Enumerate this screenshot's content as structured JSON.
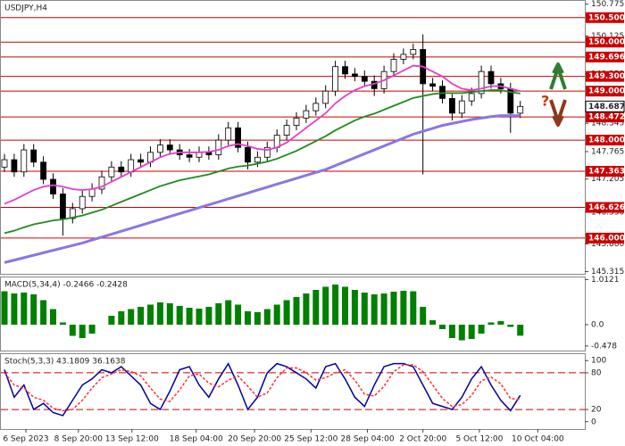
{
  "chart_data": [
    {
      "type": "candlestick",
      "title": "USDJPY,H4",
      "open": [
        147.45,
        147.6,
        147.35,
        147.8,
        147.55,
        147.2,
        146.9,
        146.4,
        146.6,
        146.85,
        147.0,
        147.25,
        147.45,
        147.35,
        147.6,
        147.55,
        147.75,
        147.9,
        147.8,
        147.7,
        147.65,
        147.75,
        147.7,
        148.0,
        148.25,
        147.85,
        147.55,
        147.65,
        147.85,
        148.1,
        148.3,
        148.45,
        148.6,
        148.75,
        149.0,
        149.5,
        149.35,
        149.3,
        149.2,
        149.05,
        149.4,
        149.65,
        149.75,
        149.85,
        149.15,
        149.1,
        148.85,
        148.55,
        148.8,
        148.95,
        149.4,
        149.15,
        149.05,
        148.55
      ],
      "high": [
        147.72,
        147.72,
        147.92,
        147.92,
        147.67,
        147.32,
        147.02,
        146.72,
        146.97,
        147.12,
        147.37,
        147.57,
        147.57,
        147.72,
        147.72,
        147.87,
        148.02,
        148.02,
        147.92,
        147.82,
        147.87,
        147.87,
        148.12,
        148.37,
        148.37,
        147.97,
        147.77,
        147.97,
        148.22,
        148.42,
        148.57,
        148.72,
        148.87,
        149.12,
        149.62,
        149.62,
        149.47,
        149.42,
        149.32,
        149.52,
        149.77,
        149.87,
        149.97,
        150.16,
        149.27,
        149.22,
        148.97,
        148.92,
        149.07,
        149.52,
        149.52,
        149.27,
        149.17,
        148.8
      ],
      "low": [
        147.35,
        147.25,
        147.25,
        147.45,
        147.1,
        146.8,
        146.05,
        146.3,
        146.5,
        146.75,
        146.9,
        147.15,
        147.25,
        147.25,
        147.45,
        147.45,
        147.65,
        147.7,
        147.6,
        147.55,
        147.55,
        147.6,
        147.6,
        147.9,
        147.75,
        147.4,
        147.45,
        147.55,
        147.75,
        148.0,
        148.2,
        148.35,
        148.5,
        148.65,
        148.9,
        149.25,
        149.2,
        149.1,
        148.9,
        148.95,
        149.3,
        149.55,
        149.65,
        147.3,
        149.0,
        148.75,
        148.4,
        148.45,
        148.7,
        148.85,
        149.05,
        148.95,
        148.15,
        148.45
      ],
      "close": [
        147.6,
        147.35,
        147.8,
        147.55,
        147.2,
        146.9,
        146.4,
        146.6,
        146.85,
        147.0,
        147.25,
        147.45,
        147.35,
        147.6,
        147.55,
        147.75,
        147.9,
        147.8,
        147.7,
        147.65,
        147.75,
        147.7,
        148.0,
        148.25,
        147.85,
        147.55,
        147.65,
        147.85,
        148.1,
        148.3,
        148.45,
        148.6,
        148.75,
        149.0,
        149.5,
        149.35,
        149.3,
        149.2,
        149.05,
        149.4,
        149.65,
        149.75,
        149.85,
        149.15,
        149.1,
        148.85,
        148.55,
        148.8,
        148.95,
        149.4,
        149.15,
        149.05,
        148.55,
        148.687
      ],
      "series": [
        {
          "color": "#8878e0",
          "values": [
            145.5,
            145.55,
            145.6,
            145.65,
            145.7,
            145.75,
            145.8,
            145.85,
            145.9,
            145.96,
            146.02,
            146.08,
            146.14,
            146.2,
            146.26,
            146.32,
            146.38,
            146.44,
            146.5,
            146.56,
            146.62,
            146.68,
            146.74,
            146.8,
            146.86,
            146.92,
            146.98,
            147.04,
            147.1,
            147.16,
            147.22,
            147.28,
            147.34,
            147.4,
            147.48,
            147.56,
            147.64,
            147.72,
            147.8,
            147.88,
            147.96,
            148.04,
            148.12,
            148.18,
            148.24,
            148.3,
            148.34,
            148.38,
            148.42,
            148.45,
            148.48,
            148.5,
            148.5,
            148.5
          ]
        },
        {
          "color": "#1e8c1e",
          "values": [
            146.1,
            146.15,
            146.22,
            146.28,
            146.32,
            146.36,
            146.38,
            146.42,
            146.46,
            146.52,
            146.58,
            146.66,
            146.74,
            146.82,
            146.9,
            146.98,
            147.06,
            147.12,
            147.18,
            147.22,
            147.26,
            147.3,
            147.36,
            147.42,
            147.46,
            147.48,
            147.52,
            147.56,
            147.62,
            147.7,
            147.78,
            147.88,
            147.98,
            148.08,
            148.2,
            148.3,
            148.4,
            148.48,
            148.54,
            148.62,
            148.7,
            148.78,
            148.86,
            148.9,
            148.94,
            148.96,
            148.96,
            148.96,
            148.98,
            149.0,
            149.02,
            149.02,
            148.98,
            148.95
          ]
        },
        {
          "color": "#e040c8",
          "values": [
            146.7,
            146.78,
            146.88,
            146.98,
            147.05,
            147.08,
            147.05,
            147.0,
            146.98,
            147.0,
            147.05,
            147.15,
            147.25,
            147.35,
            147.45,
            147.55,
            147.65,
            147.72,
            147.75,
            147.75,
            147.75,
            147.76,
            147.8,
            147.88,
            147.92,
            147.88,
            147.82,
            147.8,
            147.85,
            147.95,
            148.1,
            148.25,
            148.4,
            148.55,
            148.75,
            148.9,
            149.02,
            149.1,
            149.15,
            149.22,
            149.32,
            149.42,
            149.52,
            149.5,
            149.4,
            149.3,
            149.15,
            149.05,
            149.02,
            149.05,
            149.1,
            149.1,
            149.05,
            149.0
          ]
        }
      ],
      "ylim": [
        145.27,
        150.86
      ],
      "yticks": [
        150.775,
        150.125,
        {
          "value": 149.35,
          "label": "149.350"
        },
        148.345,
        147.765,
        147.205,
        {
          "value": 146.53,
          "label": "146.530"
        },
        {
          "value": 145.88,
          "label": "145.880"
        },
        145.315
      ],
      "levels": [
        {
          "value": 150.5,
          "label": "150.500"
        },
        {
          "value": 150,
          "label": "150.000"
        },
        149.696,
        {
          "value": 149.3,
          "label": "149.300"
        },
        {
          "value": 149,
          "label": "149.000"
        },
        148.472,
        {
          "value": 148,
          "label": "148.000"
        },
        147.363,
        146.626,
        {
          "value": 146,
          "label": "146.000"
        }
      ],
      "level_color": "#cc0000",
      "last": 148.687
    },
    {
      "type": "bar",
      "title": "MACD(5,34,4) -0.2466 -0.2428",
      "color": "#008000",
      "values": [
        0.75,
        0.7,
        0.72,
        0.68,
        0.55,
        0.35,
        0.05,
        -0.25,
        -0.3,
        -0.2,
        0.0,
        0.2,
        0.3,
        0.35,
        0.4,
        0.45,
        0.5,
        0.48,
        0.42,
        0.38,
        0.36,
        0.4,
        0.48,
        0.55,
        0.45,
        0.3,
        0.28,
        0.35,
        0.45,
        0.55,
        0.62,
        0.7,
        0.78,
        0.85,
        0.9,
        0.85,
        0.78,
        0.72,
        0.68,
        0.7,
        0.74,
        0.76,
        0.75,
        0.4,
        0.1,
        -0.1,
        -0.3,
        -0.35,
        -0.32,
        -0.2,
        0.05,
        0.08,
        -0.05,
        -0.2466
      ],
      "ylim": [
        -0.58,
        1.08
      ],
      "yticks": [
        1.0121,
        {
          "value": 0,
          "label": "0.0"
        },
        -0.478
      ]
    },
    {
      "type": "line",
      "title": "Stoch(5,3,3) 43.1809 36.1638",
      "series": [
        {
          "color": "#0000a0",
          "values": [
            85,
            40,
            60,
            20,
            30,
            15,
            10,
            35,
            60,
            70,
            85,
            80,
            90,
            75,
            60,
            30,
            20,
            50,
            85,
            90,
            60,
            40,
            70,
            95,
            60,
            20,
            40,
            80,
            95,
            90,
            80,
            70,
            55,
            90,
            95,
            70,
            40,
            25,
            60,
            90,
            95,
            95,
            90,
            60,
            30,
            25,
            20,
            40,
            70,
            90,
            60,
            35,
            18,
            43.1809
          ]
        },
        {
          "color": "#ff3030",
          "dashed": true,
          "values": [
            80,
            60,
            55,
            40,
            35,
            22,
            18,
            20,
            35,
            55,
            72,
            78,
            85,
            82,
            75,
            55,
            37,
            33,
            52,
            75,
            78,
            63,
            57,
            68,
            75,
            58,
            40,
            47,
            72,
            88,
            88,
            80,
            68,
            72,
            80,
            85,
            68,
            45,
            42,
            58,
            82,
            93,
            93,
            82,
            60,
            38,
            25,
            28,
            43,
            67,
            73,
            62,
            38,
            36.1638
          ]
        }
      ],
      "ylim": [
        -12,
        112
      ],
      "yticks": [
        100,
        80,
        20,
        0
      ],
      "levels": [
        80,
        20
      ],
      "level_color": "#cc0000",
      "xticks": [
        {
          "value": 2.2,
          "label": "6 Sep 2023"
        },
        {
          "value": 7.6,
          "label": "8 Sep 20:00"
        },
        {
          "value": 13.1,
          "label": "13 Sep 12:00"
        },
        {
          "value": 19.7,
          "label": "18 Sep 04:00"
        },
        {
          "value": 25.7,
          "label": "20 Sep 20:00"
        },
        {
          "value": 31.5,
          "label": "25 Sep 12:00"
        },
        {
          "value": 37.3,
          "label": "28 Sep 04:00"
        },
        {
          "value": 43,
          "label": "2 Oct 20:00"
        },
        {
          "value": 48.8,
          "label": "5 Oct 12:00"
        },
        {
          "value": 54.8,
          "label": "10 Oct 04:00"
        }
      ]
    }
  ]
}
